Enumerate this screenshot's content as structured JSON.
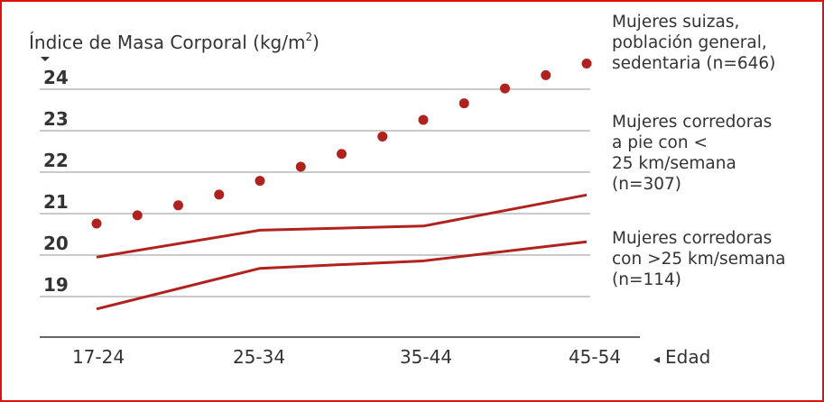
{
  "chart_data": {
    "type": "line",
    "ylabel": "Índice de Masa Corporal (kg/m",
    "ylabel_sup": "2",
    "ylabel_close": ")",
    "xlabel": "Edad",
    "xlabel_marker": "◂",
    "categories": [
      "17-24",
      "25-34",
      "35-44",
      "45-54"
    ],
    "yticks": [
      24,
      23,
      22,
      21,
      20,
      19
    ],
    "ylim": [
      18.3,
      24.5
    ],
    "grid": true,
    "series": [
      {
        "style": "dotted",
        "color": "#b0221e",
        "x": [
          0,
          0.25,
          0.5,
          0.75,
          1,
          1.25,
          1.5,
          1.75,
          2,
          2.25,
          2.5,
          2.75,
          3
        ],
        "values": [
          20.76,
          20.96,
          21.2,
          21.46,
          21.79,
          22.13,
          22.44,
          22.86,
          23.26,
          23.66,
          24.02,
          24.34,
          24.62
        ],
        "label_lines": [
          "Mujeres suizas,",
          "población general,",
          "sedentaria (n=646)"
        ]
      },
      {
        "style": "solid",
        "color": "#b0221e",
        "x": [
          0,
          1,
          2,
          3
        ],
        "values": [
          19.95,
          20.6,
          20.7,
          21.45
        ],
        "label_lines": [
          "Mujeres corredoras",
          "a pie con <",
          "25 km/semana",
          "(n=307)"
        ]
      },
      {
        "style": "solid",
        "color": "#b0221e",
        "x": [
          0,
          1,
          2,
          3
        ],
        "values": [
          18.7,
          19.68,
          19.86,
          20.32
        ],
        "label_lines": [
          "Mujeres corredoras",
          "con >25 km/semana",
          "(n=114)"
        ]
      }
    ]
  }
}
